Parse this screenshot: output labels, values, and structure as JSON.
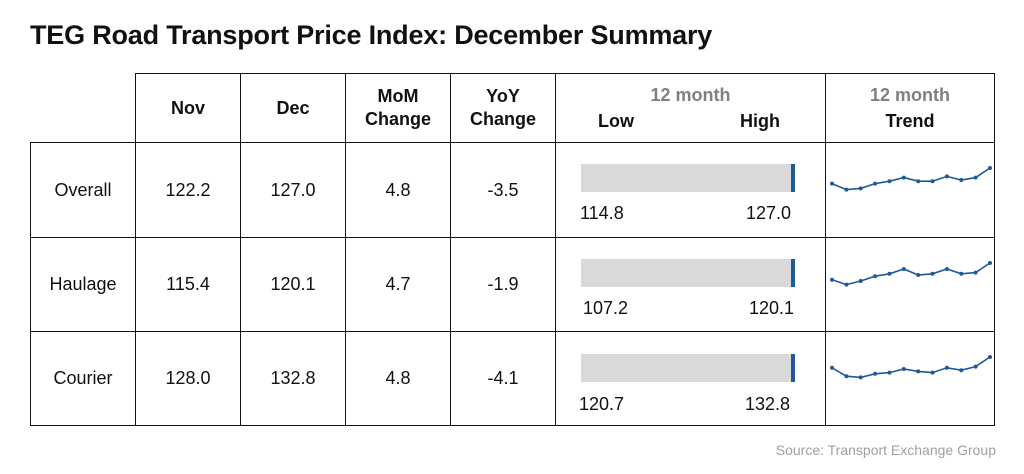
{
  "title": "TEG Road Transport Price Index: December Summary",
  "headers": {
    "nov": "Nov",
    "dec": "Dec",
    "mom_line1": "MoM",
    "mom_line2": "Change",
    "yoy_line1": "YoY",
    "yoy_line2": "Change",
    "range_top": "12 month",
    "range_low": "Low",
    "range_high": "High",
    "trend_top": "12 month",
    "trend_bottom": "Trend"
  },
  "rows": [
    {
      "label": "Overall",
      "nov": "122.2",
      "dec": "127.0",
      "mom": "4.8",
      "yoy": "-3.5",
      "low": "114.8",
      "high": "127.0"
    },
    {
      "label": "Haulage",
      "nov": "115.4",
      "dec": "120.1",
      "mom": "4.7",
      "yoy": "-1.9",
      "low": "107.2",
      "high": "120.1"
    },
    {
      "label": "Courier",
      "nov": "128.0",
      "dec": "132.8",
      "mom": "4.8",
      "yoy": "-4.1",
      "low": "120.7",
      "high": "132.8"
    }
  ],
  "chart_data": {
    "type": "table",
    "columns": [
      "Nov",
      "Dec",
      "MoM Change",
      "YoY Change",
      "12 month Low",
      "12 month High",
      "12 month Trend"
    ],
    "rows": [
      {
        "name": "Overall",
        "values": [
          122.2,
          127.0,
          4.8,
          -3.5,
          114.8,
          127.0
        ],
        "trend": [
          0.35,
          0.1,
          0.15,
          0.35,
          0.45,
          0.6,
          0.45,
          0.45,
          0.65,
          0.5,
          0.6,
          1.0
        ]
      },
      {
        "name": "Haulage",
        "values": [
          115.4,
          120.1,
          4.7,
          -1.9,
          107.2,
          120.1
        ],
        "trend": [
          0.3,
          0.1,
          0.25,
          0.45,
          0.55,
          0.75,
          0.5,
          0.55,
          0.75,
          0.55,
          0.6,
          1.0
        ]
      },
      {
        "name": "Courier",
        "values": [
          128.0,
          132.8,
          4.8,
          -4.1,
          120.7,
          132.8
        ],
        "trend": [
          0.55,
          0.2,
          0.15,
          0.3,
          0.35,
          0.5,
          0.4,
          0.35,
          0.55,
          0.45,
          0.6,
          1.0
        ]
      }
    ],
    "trend_color": "#1f5a96",
    "range_bar_color": "#d9d9d9"
  },
  "source": "Source: Transport Exchange Group"
}
